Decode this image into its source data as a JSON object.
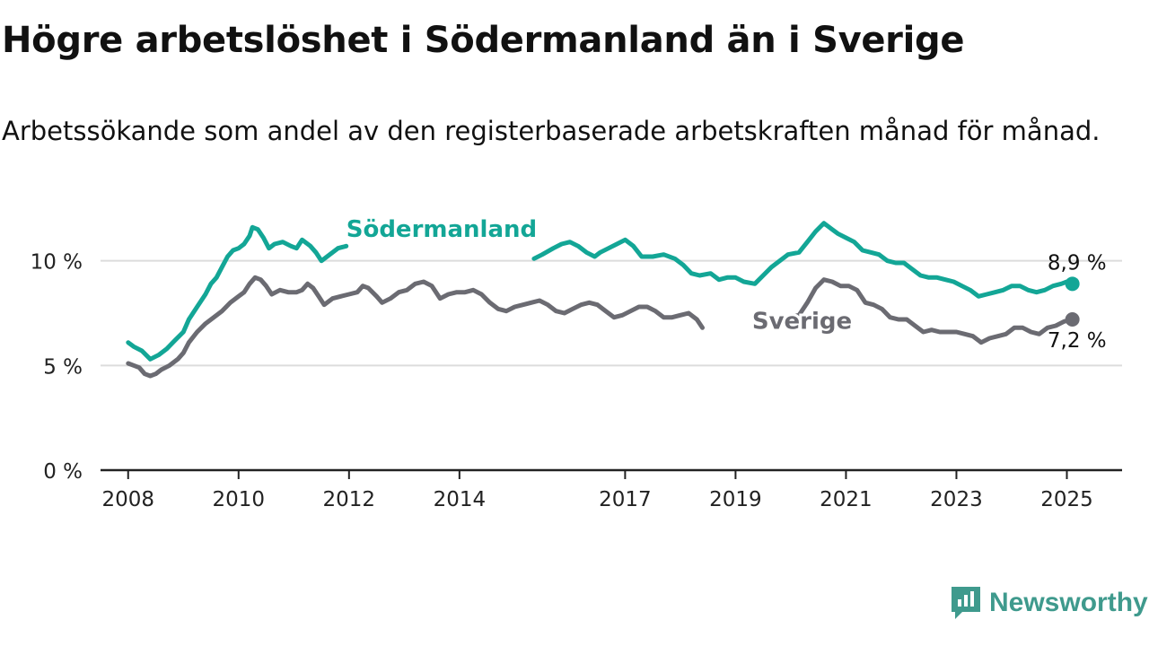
{
  "title": "Högre arbetslöshet i Södermanland än i Sverige",
  "subtitle": "Arbetssökande som andel av den registerbaserade arbetskraften månad för månad.",
  "brand": "Newsworthy",
  "colors": {
    "sodermanland": "#13a696",
    "sverige": "#6b6b72",
    "grid": "#dcdcdc",
    "axis": "#222222"
  },
  "chart_data": {
    "type": "line",
    "ylim": [
      0,
      12
    ],
    "yticks": [
      0,
      5,
      10
    ],
    "ytick_labels": [
      "0 %",
      "5 %",
      "10 %"
    ],
    "xlim": [
      2007.5,
      2026.0
    ],
    "xticks": [
      2008,
      2010,
      2012,
      2014,
      2017,
      2019,
      2021,
      2023,
      2025
    ],
    "xtick_labels": [
      "2008",
      "2010",
      "2012",
      "2014",
      "2017",
      "2019",
      "2021",
      "2023",
      "2025"
    ],
    "series": [
      {
        "name": "Södermanland",
        "label_pos": [
          2011.95,
          11.15
        ],
        "last_label": "8,9 %",
        "points": [
          [
            2008.0,
            6.1
          ],
          [
            2008.1,
            5.9
          ],
          [
            2008.25,
            5.7
          ],
          [
            2008.4,
            5.3
          ],
          [
            2008.55,
            5.5
          ],
          [
            2008.7,
            5.8
          ],
          [
            2008.85,
            6.2
          ],
          [
            2009.0,
            6.6
          ],
          [
            2009.1,
            7.2
          ],
          [
            2009.25,
            7.8
          ],
          [
            2009.4,
            8.4
          ],
          [
            2009.5,
            8.9
          ],
          [
            2009.6,
            9.2
          ],
          [
            2009.7,
            9.7
          ],
          [
            2009.8,
            10.2
          ],
          [
            2009.9,
            10.5
          ],
          [
            2010.0,
            10.6
          ],
          [
            2010.1,
            10.8
          ],
          [
            2010.2,
            11.2
          ],
          [
            2010.25,
            11.6
          ],
          [
            2010.35,
            11.5
          ],
          [
            2010.45,
            11.1
          ],
          [
            2010.55,
            10.6
          ],
          [
            2010.65,
            10.8
          ],
          [
            2010.8,
            10.9
          ],
          [
            2010.95,
            10.7
          ],
          [
            2011.05,
            10.6
          ],
          [
            2011.15,
            11.0
          ],
          [
            2011.3,
            10.7
          ],
          [
            2011.4,
            10.4
          ],
          [
            2011.5,
            10.0
          ],
          [
            2011.65,
            10.3
          ],
          [
            2011.8,
            10.6
          ],
          [
            2011.95,
            10.7
          ]
        ]
      },
      {
        "name": "",
        "points": [
          [
            2015.35,
            10.1
          ],
          [
            2015.5,
            10.3
          ],
          [
            2015.7,
            10.6
          ],
          [
            2015.85,
            10.8
          ],
          [
            2016.0,
            10.9
          ],
          [
            2016.15,
            10.7
          ],
          [
            2016.3,
            10.4
          ],
          [
            2016.45,
            10.2
          ],
          [
            2016.55,
            10.4
          ],
          [
            2016.7,
            10.6
          ],
          [
            2016.85,
            10.8
          ],
          [
            2017.0,
            11.0
          ],
          [
            2017.15,
            10.7
          ],
          [
            2017.3,
            10.2
          ],
          [
            2017.5,
            10.2
          ],
          [
            2017.7,
            10.3
          ],
          [
            2017.9,
            10.1
          ],
          [
            2018.05,
            9.8
          ],
          [
            2018.2,
            9.4
          ],
          [
            2018.35,
            9.3
          ],
          [
            2018.55,
            9.4
          ],
          [
            2018.7,
            9.1
          ],
          [
            2018.85,
            9.2
          ],
          [
            2019.0,
            9.2
          ],
          [
            2019.15,
            9.0
          ],
          [
            2019.35,
            8.9
          ],
          [
            2019.5,
            9.3
          ],
          [
            2019.65,
            9.7
          ],
          [
            2019.8,
            10.0
          ],
          [
            2019.95,
            10.3
          ],
          [
            2020.15,
            10.4
          ],
          [
            2020.3,
            10.9
          ],
          [
            2020.45,
            11.4
          ],
          [
            2020.6,
            11.8
          ],
          [
            2020.75,
            11.5
          ],
          [
            2020.85,
            11.3
          ],
          [
            2021.0,
            11.1
          ],
          [
            2021.15,
            10.9
          ],
          [
            2021.3,
            10.5
          ],
          [
            2021.45,
            10.4
          ],
          [
            2021.6,
            10.3
          ],
          [
            2021.75,
            10.0
          ],
          [
            2021.9,
            9.9
          ],
          [
            2022.05,
            9.9
          ],
          [
            2022.2,
            9.6
          ],
          [
            2022.35,
            9.3
          ],
          [
            2022.5,
            9.2
          ],
          [
            2022.65,
            9.2
          ],
          [
            2022.8,
            9.1
          ],
          [
            2022.95,
            9.0
          ],
          [
            2023.1,
            8.8
          ],
          [
            2023.25,
            8.6
          ],
          [
            2023.4,
            8.3
          ],
          [
            2023.55,
            8.4
          ],
          [
            2023.7,
            8.5
          ],
          [
            2023.85,
            8.6
          ],
          [
            2024.0,
            8.8
          ],
          [
            2024.15,
            8.8
          ],
          [
            2024.3,
            8.6
          ],
          [
            2024.45,
            8.5
          ],
          [
            2024.6,
            8.6
          ],
          [
            2024.75,
            8.8
          ],
          [
            2024.9,
            8.9
          ],
          [
            2025.0,
            9.0
          ],
          [
            2025.1,
            8.9
          ]
        ]
      },
      {
        "name": "Sverige",
        "label_pos": [
          2019.3,
          6.75
        ],
        "last_label": "7,2 %",
        "points": [
          [
            2008.0,
            5.1
          ],
          [
            2008.1,
            5.0
          ],
          [
            2008.2,
            4.9
          ],
          [
            2008.3,
            4.6
          ],
          [
            2008.4,
            4.5
          ],
          [
            2008.5,
            4.6
          ],
          [
            2008.6,
            4.8
          ],
          [
            2008.75,
            5.0
          ],
          [
            2008.9,
            5.3
          ],
          [
            2009.0,
            5.6
          ],
          [
            2009.1,
            6.1
          ],
          [
            2009.25,
            6.6
          ],
          [
            2009.4,
            7.0
          ],
          [
            2009.55,
            7.3
          ],
          [
            2009.7,
            7.6
          ],
          [
            2009.85,
            8.0
          ],
          [
            2010.0,
            8.3
          ],
          [
            2010.1,
            8.5
          ],
          [
            2010.2,
            8.9
          ],
          [
            2010.3,
            9.2
          ],
          [
            2010.4,
            9.1
          ],
          [
            2010.5,
            8.8
          ],
          [
            2010.6,
            8.4
          ],
          [
            2010.75,
            8.6
          ],
          [
            2010.9,
            8.5
          ],
          [
            2011.05,
            8.5
          ],
          [
            2011.15,
            8.6
          ],
          [
            2011.25,
            8.9
          ],
          [
            2011.35,
            8.7
          ],
          [
            2011.45,
            8.3
          ],
          [
            2011.55,
            7.9
          ],
          [
            2011.7,
            8.2
          ],
          [
            2011.85,
            8.3
          ],
          [
            2012.0,
            8.4
          ],
          [
            2012.15,
            8.5
          ],
          [
            2012.25,
            8.8
          ],
          [
            2012.35,
            8.7
          ],
          [
            2012.5,
            8.3
          ],
          [
            2012.6,
            8.0
          ],
          [
            2012.75,
            8.2
          ],
          [
            2012.9,
            8.5
          ],
          [
            2013.05,
            8.6
          ],
          [
            2013.2,
            8.9
          ],
          [
            2013.35,
            9.0
          ],
          [
            2013.5,
            8.8
          ],
          [
            2013.65,
            8.2
          ],
          [
            2013.8,
            8.4
          ],
          [
            2013.95,
            8.5
          ],
          [
            2014.1,
            8.5
          ],
          [
            2014.25,
            8.6
          ],
          [
            2014.4,
            8.4
          ],
          [
            2014.55,
            8.0
          ],
          [
            2014.7,
            7.7
          ],
          [
            2014.85,
            7.6
          ],
          [
            2015.0,
            7.8
          ],
          [
            2015.15,
            7.9
          ],
          [
            2015.3,
            8.0
          ],
          [
            2015.45,
            8.1
          ],
          [
            2015.6,
            7.9
          ],
          [
            2015.75,
            7.6
          ],
          [
            2015.9,
            7.5
          ],
          [
            2016.05,
            7.7
          ],
          [
            2016.2,
            7.9
          ],
          [
            2016.35,
            8.0
          ],
          [
            2016.5,
            7.9
          ],
          [
            2016.65,
            7.6
          ],
          [
            2016.8,
            7.3
          ],
          [
            2016.95,
            7.4
          ],
          [
            2017.1,
            7.6
          ],
          [
            2017.25,
            7.8
          ],
          [
            2017.4,
            7.8
          ],
          [
            2017.55,
            7.6
          ],
          [
            2017.7,
            7.3
          ],
          [
            2017.85,
            7.3
          ],
          [
            2018.0,
            7.4
          ],
          [
            2018.15,
            7.5
          ],
          [
            2018.3,
            7.2
          ],
          [
            2018.4,
            6.8
          ]
        ]
      },
      {
        "name": "",
        "points": [
          [
            2019.95,
            7.3
          ],
          [
            2020.15,
            7.4
          ],
          [
            2020.3,
            8.0
          ],
          [
            2020.45,
            8.7
          ],
          [
            2020.6,
            9.1
          ],
          [
            2020.75,
            9.0
          ],
          [
            2020.9,
            8.8
          ],
          [
            2021.05,
            8.8
          ],
          [
            2021.2,
            8.6
          ],
          [
            2021.35,
            8.0
          ],
          [
            2021.5,
            7.9
          ],
          [
            2021.65,
            7.7
          ],
          [
            2021.8,
            7.3
          ],
          [
            2021.95,
            7.2
          ],
          [
            2022.1,
            7.2
          ],
          [
            2022.25,
            6.9
          ],
          [
            2022.4,
            6.6
          ],
          [
            2022.55,
            6.7
          ],
          [
            2022.7,
            6.6
          ],
          [
            2022.85,
            6.6
          ],
          [
            2023.0,
            6.6
          ],
          [
            2023.15,
            6.5
          ],
          [
            2023.3,
            6.4
          ],
          [
            2023.45,
            6.1
          ],
          [
            2023.6,
            6.3
          ],
          [
            2023.75,
            6.4
          ],
          [
            2023.9,
            6.5
          ],
          [
            2024.05,
            6.8
          ],
          [
            2024.2,
            6.8
          ],
          [
            2024.35,
            6.6
          ],
          [
            2024.5,
            6.5
          ],
          [
            2024.65,
            6.8
          ],
          [
            2024.8,
            6.9
          ],
          [
            2024.95,
            7.1
          ],
          [
            2025.1,
            7.2
          ]
        ]
      }
    ],
    "endpoints": [
      {
        "x": 2025.1,
        "y": 8.9,
        "label": "8,9 %"
      },
      {
        "x": 2025.1,
        "y": 7.2,
        "label": "7,2 %"
      }
    ]
  }
}
